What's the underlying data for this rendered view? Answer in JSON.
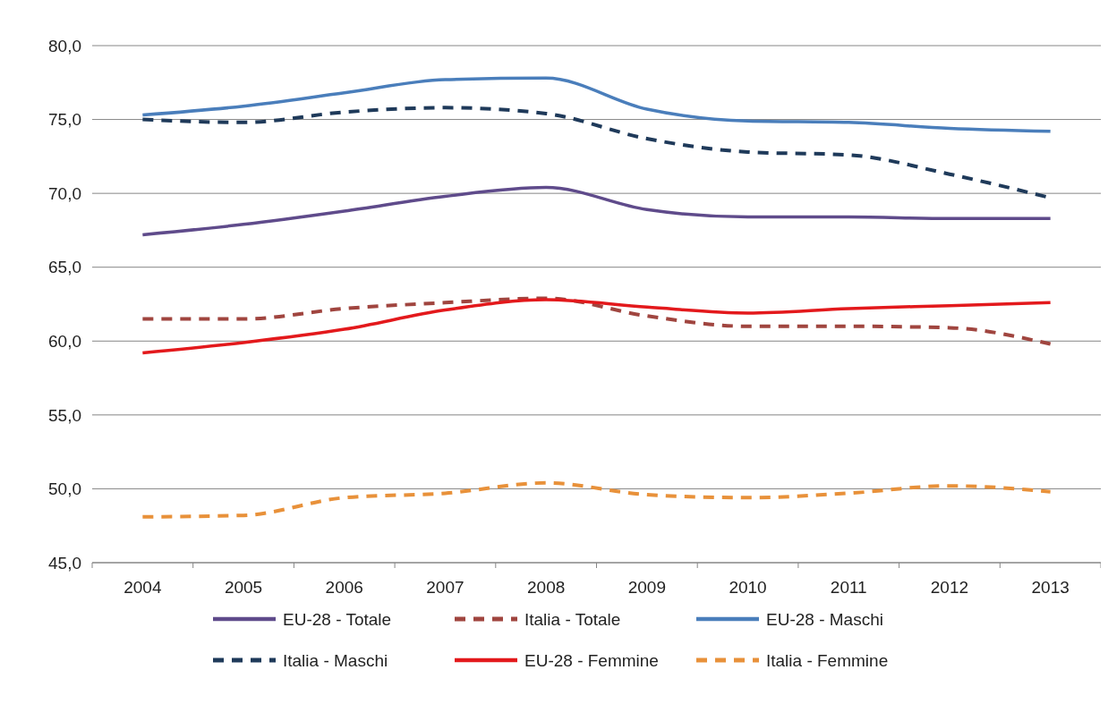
{
  "chart_data": {
    "type": "line",
    "categories": [
      "2004",
      "2005",
      "2006",
      "2007",
      "2008",
      "2009",
      "2010",
      "2011",
      "2012",
      "2013"
    ],
    "ylim": [
      45,
      80
    ],
    "yticks": [
      {
        "value": 45,
        "label": "45,0"
      },
      {
        "value": 50,
        "label": "50,0"
      },
      {
        "value": 55,
        "label": "55,0"
      },
      {
        "value": 60,
        "label": "60,0"
      },
      {
        "value": 65,
        "label": "65,0"
      },
      {
        "value": 70,
        "label": "70,0"
      },
      {
        "value": 75,
        "label": "75,0"
      },
      {
        "value": 80,
        "label": "80,0"
      }
    ],
    "grid": "y",
    "legend": "bottom",
    "series": [
      {
        "name": "EU-28 - Totale",
        "color": "#5f4b8b",
        "line_style": "solid",
        "values": [
          67.2,
          67.9,
          68.8,
          69.8,
          70.4,
          68.9,
          68.4,
          68.4,
          68.3,
          68.3
        ]
      },
      {
        "name": "Italia - Totale",
        "color": "#a0453f",
        "line_style": "dashed",
        "values": [
          61.5,
          61.5,
          62.2,
          62.6,
          62.9,
          61.7,
          61.0,
          61.0,
          60.9,
          59.8
        ]
      },
      {
        "name": "EU-28 - Maschi",
        "color": "#4a7ebb",
        "line_style": "solid",
        "values": [
          75.3,
          75.9,
          76.8,
          77.7,
          77.8,
          75.7,
          74.9,
          74.8,
          74.4,
          74.2
        ]
      },
      {
        "name": "Italia - Maschi",
        "color": "#1f3a5a",
        "line_style": "dashed",
        "values": [
          75.0,
          74.8,
          75.5,
          75.8,
          75.4,
          73.7,
          72.8,
          72.6,
          71.3,
          69.7
        ]
      },
      {
        "name": "EU-28 - Femmine",
        "color": "#e3191c",
        "line_style": "solid",
        "values": [
          59.2,
          59.9,
          60.8,
          62.1,
          62.8,
          62.3,
          61.9,
          62.2,
          62.4,
          62.6
        ]
      },
      {
        "name": "Italia - Femmine",
        "color": "#e8913a",
        "line_style": "dashed",
        "values": [
          48.1,
          48.2,
          49.4,
          49.7,
          50.4,
          49.6,
          49.4,
          49.7,
          50.2,
          49.8
        ]
      }
    ]
  }
}
